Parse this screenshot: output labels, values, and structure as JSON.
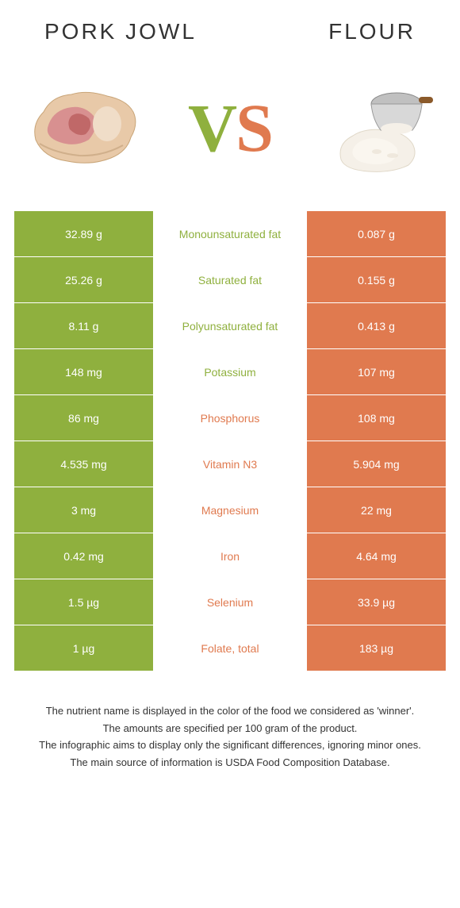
{
  "colors": {
    "left": "#8fb03e",
    "right": "#e07a4f",
    "bg": "#ffffff",
    "text": "#333333"
  },
  "header": {
    "left_title": "PORK JOWL",
    "right_title": "FLOUR"
  },
  "vs": {
    "v": "V",
    "s": "S"
  },
  "rows": [
    {
      "left": "32.89 g",
      "label": "Monounsaturated fat",
      "right": "0.087 g",
      "winner": "left"
    },
    {
      "left": "25.26 g",
      "label": "Saturated fat",
      "right": "0.155 g",
      "winner": "left"
    },
    {
      "left": "8.11 g",
      "label": "Polyunsaturated fat",
      "right": "0.413 g",
      "winner": "left"
    },
    {
      "left": "148 mg",
      "label": "Potassium",
      "right": "107 mg",
      "winner": "left"
    },
    {
      "left": "86 mg",
      "label": "Phosphorus",
      "right": "108 mg",
      "winner": "right"
    },
    {
      "left": "4.535 mg",
      "label": "Vitamin N3",
      "right": "5.904 mg",
      "winner": "right"
    },
    {
      "left": "3 mg",
      "label": "Magnesium",
      "right": "22 mg",
      "winner": "right"
    },
    {
      "left": "0.42 mg",
      "label": "Iron",
      "right": "4.64 mg",
      "winner": "right"
    },
    {
      "left": "1.5 µg",
      "label": "Selenium",
      "right": "33.9 µg",
      "winner": "right"
    },
    {
      "left": "1 µg",
      "label": "Folate, total",
      "right": "183 µg",
      "winner": "right"
    }
  ],
  "footer": {
    "line1": "The nutrient name is displayed in the color of the food we considered as 'winner'.",
    "line2": "The amounts are specified per 100 gram of the product.",
    "line3": "The infographic aims to display only the significant differences, ignoring minor ones.",
    "line4": "The main source of information is USDA Food Composition Database."
  }
}
